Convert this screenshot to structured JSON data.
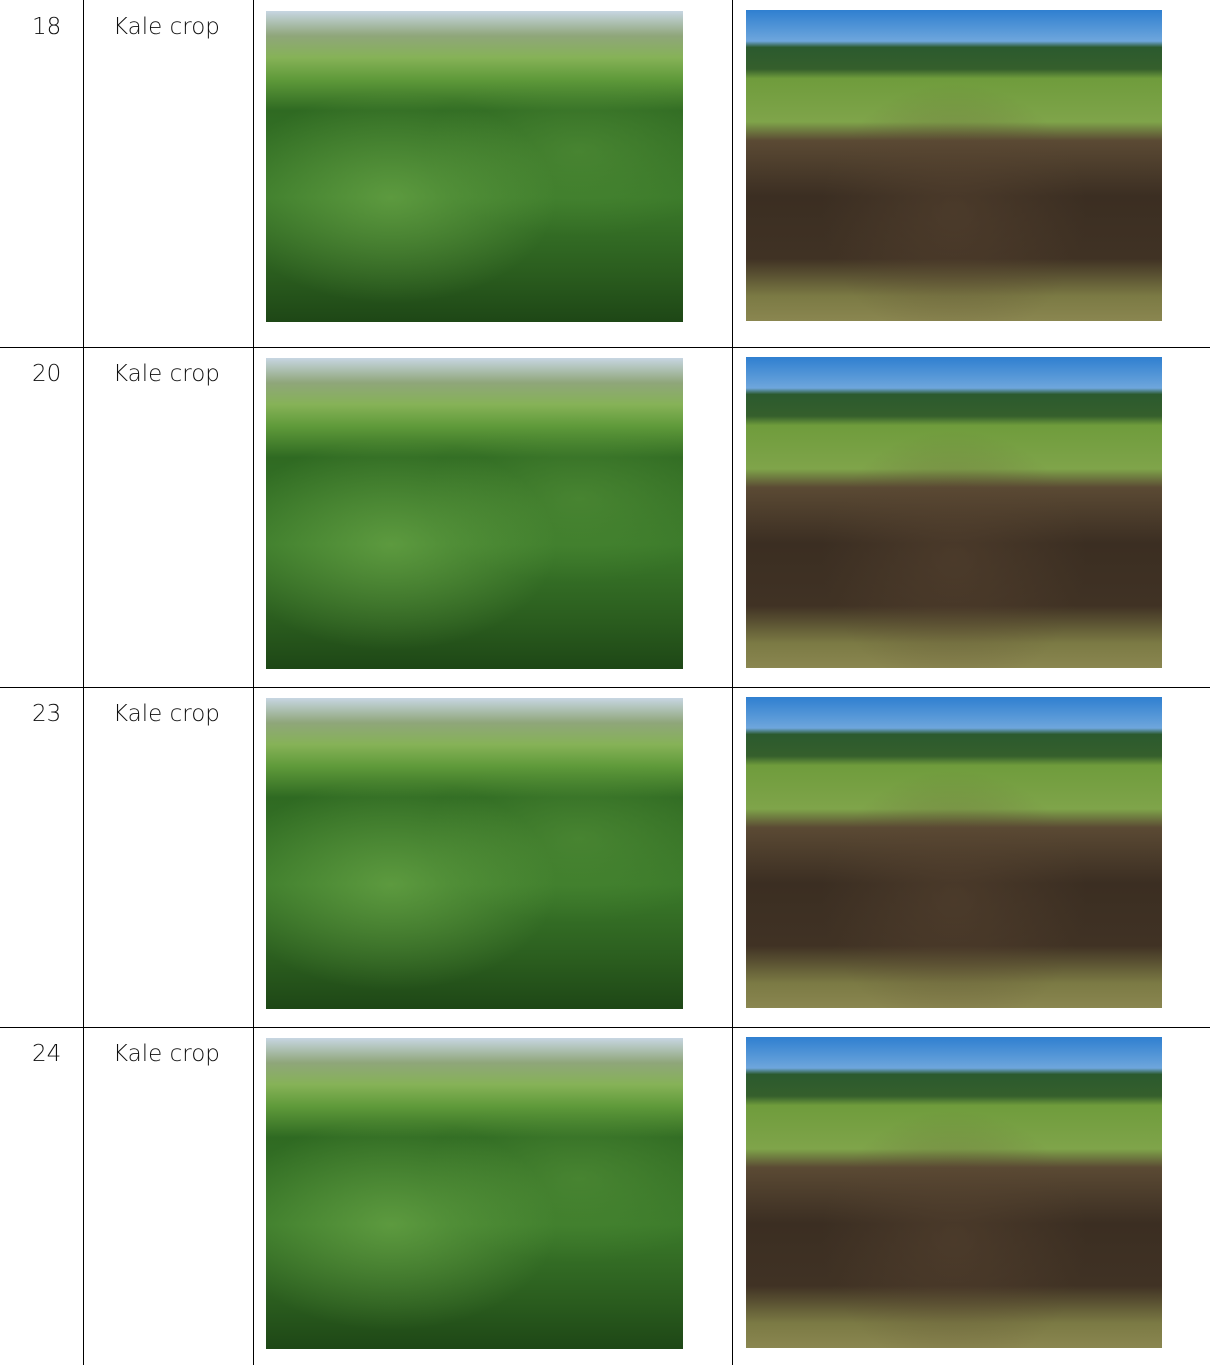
{
  "table": {
    "rows": [
      [
        "18",
        "Kale crop"
      ],
      [
        "20",
        "Kale crop"
      ],
      [
        "23",
        "Kale crop"
      ],
      [
        "24",
        "Kale crop"
      ]
    ]
  }
}
